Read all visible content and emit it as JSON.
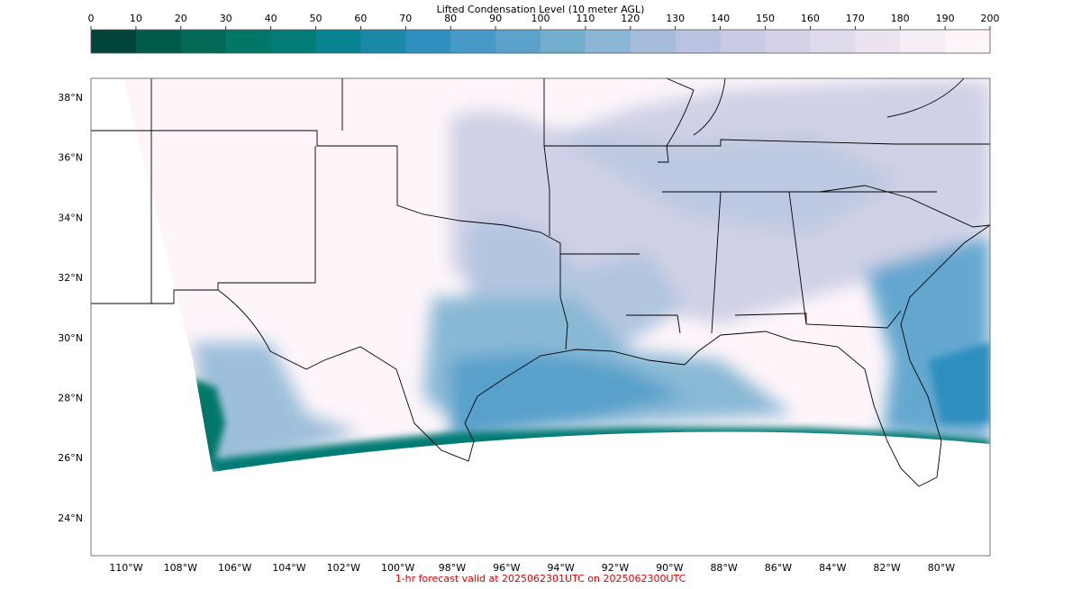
{
  "colorbar": {
    "label": "Lifted Condensation Level (10 meter AGL)",
    "ticks": [
      0,
      10,
      20,
      30,
      40,
      50,
      60,
      70,
      80,
      90,
      100,
      110,
      120,
      130,
      140,
      150,
      160,
      170,
      180,
      190,
      200
    ],
    "colors": [
      "#00443a",
      "#005b4b",
      "#016a57",
      "#017767",
      "#027c75",
      "#088390",
      "#1b88a8",
      "#2f8fbf",
      "#479ac8",
      "#5ca3cc",
      "#74aecf",
      "#8cb6d6",
      "#a5bddb",
      "#b8c3df",
      "#c8cbe3",
      "#d4d2e7",
      "#e0daed",
      "#ebe3f0",
      "#f4edf6",
      "#fdf5fa"
    ]
  },
  "map": {
    "lat_ticks": [
      "38°N",
      "36°N",
      "34°N",
      "32°N",
      "30°N",
      "28°N",
      "26°N",
      "24°N"
    ],
    "lon_ticks": [
      "110°W",
      "108°W",
      "106°W",
      "104°W",
      "102°W",
      "100°W",
      "98°W",
      "96°W",
      "94°W",
      "92°W",
      "90°W",
      "88°W",
      "86°W",
      "84°W",
      "82°W",
      "80°W"
    ]
  },
  "footer": "1-hr forecast valid at 2025062301UTC on 2025062300UTC"
}
